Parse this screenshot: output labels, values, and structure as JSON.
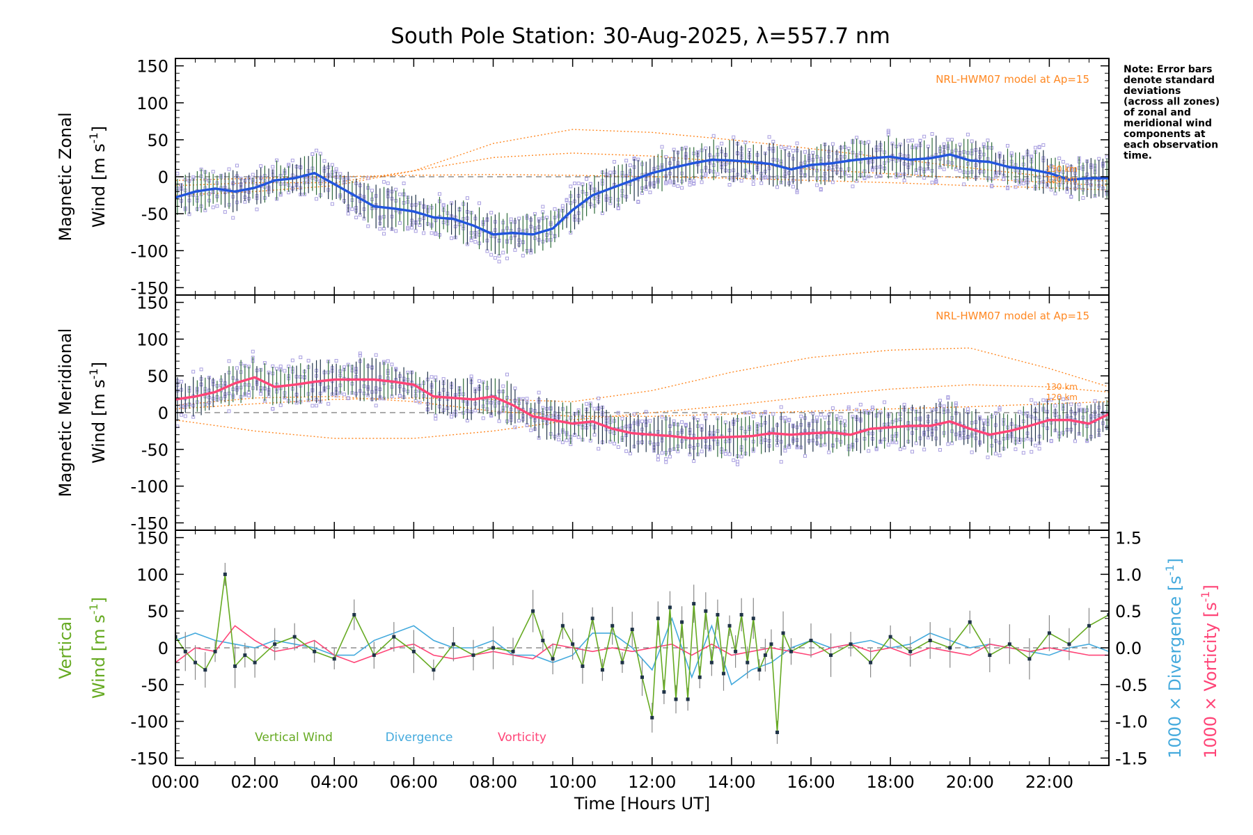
{
  "chart_data": {
    "type": "line",
    "title": "South Pole Station: 30-Aug-2025, λ=557.7 nm",
    "note": [
      "Note: Error bars",
      "denote standard",
      "deviations",
      "(across all zones)",
      "of zonal and",
      "meridional wind",
      "components at",
      "each observation",
      "time."
    ],
    "xlabel": "Time [Hours UT]",
    "xlim": [
      0,
      23.5
    ],
    "x_tick_labels": [
      "00:00",
      "02:00",
      "04:00",
      "06:00",
      "08:00",
      "10:00",
      "12:00",
      "14:00",
      "16:00",
      "18:00",
      "20:00",
      "22:00"
    ],
    "x_tick_values": [
      0,
      2,
      4,
      6,
      8,
      10,
      12,
      14,
      16,
      18,
      20,
      22
    ],
    "colors": {
      "zonal": "#2255dd",
      "meridional": "#ff4477",
      "vertical": "#66aa22",
      "divergence": "#44aadd",
      "vorticity": "#ff4477",
      "model": "#ff8822",
      "errbar_green": "#2e6b3a",
      "errbar_dark": "#1f3348",
      "scatter": "#a89ee0"
    },
    "panels": [
      {
        "id": "zonal",
        "ylabel_line1": "Magnetic Zonal",
        "ylabel_line2": "Wind [m s",
        "ylabel_sup": "-1",
        "ylabel_close": "]",
        "ylim": [
          -160,
          160
        ],
        "y_ticks": [
          150,
          100,
          50,
          0,
          -50,
          -100,
          -150
        ],
        "model_label": "NRL-HWM07 model at Ap=15",
        "model_alt_labels": [
          "130 km",
          "120 km"
        ],
        "series": {
          "name": "Magnetic Zonal Wind",
          "x": [
            0,
            0.5,
            1,
            1.5,
            2,
            2.5,
            3,
            3.5,
            4,
            4.5,
            5,
            5.5,
            6,
            6.5,
            7,
            7.5,
            8,
            8.5,
            9,
            9.5,
            10,
            10.5,
            11,
            11.5,
            12,
            12.5,
            13,
            13.5,
            14,
            14.5,
            15,
            15.5,
            16,
            16.5,
            17,
            17.5,
            18,
            18.5,
            19,
            19.5,
            20,
            20.5,
            21,
            21.5,
            22,
            22.5,
            23,
            23.5
          ],
          "values": [
            -28,
            -20,
            -16,
            -20,
            -15,
            -5,
            -2,
            5,
            -10,
            -25,
            -40,
            -43,
            -47,
            -55,
            -57,
            -66,
            -78,
            -76,
            -78,
            -70,
            -45,
            -25,
            -15,
            -5,
            5,
            12,
            18,
            23,
            22,
            20,
            17,
            10,
            16,
            18,
            22,
            25,
            27,
            23,
            25,
            30,
            22,
            20,
            13,
            10,
            5,
            -4,
            -2,
            -2
          ]
        },
        "model_curves": [
          {
            "x": [
              0,
              2,
              4,
              6,
              8,
              10,
              12,
              14,
              16,
              18,
              20,
              22,
              23.5
            ],
            "values": [
              -12,
              -8,
              -8,
              8,
              26,
              32,
              28,
              20,
              10,
              4,
              -2,
              -8,
              -12
            ]
          },
          {
            "x": [
              0,
              2,
              4,
              6,
              8,
              10,
              12,
              14,
              16,
              18,
              20,
              22,
              23.5
            ],
            "values": [
              -25,
              -20,
              -12,
              8,
              45,
              64,
              60,
              50,
              38,
              25,
              12,
              0,
              -6
            ]
          },
          {
            "x": [
              0,
              2,
              4,
              6,
              8,
              10,
              12,
              14,
              16,
              18,
              20,
              22,
              23.5
            ],
            "values": [
              -5,
              -2,
              0,
              2,
              3,
              2,
              0,
              -2,
              -5,
              -8,
              -12,
              -15,
              -18
            ]
          }
        ]
      },
      {
        "id": "meridional",
        "ylabel_line1": "Magnetic Meridional",
        "ylabel_line2": "Wind [m s",
        "ylabel_sup": "-1",
        "ylabel_close": "]",
        "ylim": [
          -160,
          160
        ],
        "y_ticks": [
          150,
          100,
          50,
          0,
          -50,
          -100,
          -150
        ],
        "model_label": "NRL-HWM07 model at Ap=15",
        "model_alt_labels": [
          "130 km",
          "120 km"
        ],
        "series": {
          "name": "Magnetic Meridional Wind",
          "x": [
            0,
            0.5,
            1,
            1.5,
            2,
            2.5,
            3,
            3.5,
            4,
            4.5,
            5,
            5.5,
            6,
            6.5,
            7,
            7.5,
            8,
            8.5,
            9,
            9.5,
            10,
            10.5,
            11,
            11.5,
            12,
            12.5,
            13,
            13.5,
            14,
            14.5,
            15,
            15.5,
            16,
            16.5,
            17,
            17.5,
            18,
            18.5,
            19,
            19.5,
            20,
            20.5,
            21,
            21.5,
            22,
            22.5,
            23,
            23.5
          ],
          "values": [
            18,
            22,
            28,
            40,
            48,
            35,
            38,
            42,
            45,
            45,
            45,
            42,
            38,
            22,
            20,
            18,
            22,
            10,
            -5,
            -10,
            -15,
            -12,
            -22,
            -28,
            -30,
            -32,
            -35,
            -34,
            -33,
            -32,
            -28,
            -30,
            -28,
            -27,
            -30,
            -22,
            -20,
            -18,
            -18,
            -12,
            -22,
            -30,
            -25,
            -18,
            -10,
            -10,
            -15,
            -2
          ]
        },
        "model_curves": [
          {
            "x": [
              0,
              2,
              4,
              6,
              8,
              10,
              12,
              14,
              16,
              18,
              20,
              22,
              23.5
            ],
            "values": [
              10,
              20,
              22,
              15,
              2,
              -5,
              -5,
              -2,
              2,
              5,
              8,
              12,
              15
            ]
          },
          {
            "x": [
              0,
              2,
              4,
              6,
              8,
              10,
              12,
              14,
              16,
              18,
              20,
              22,
              23.5
            ],
            "values": [
              -10,
              -25,
              -35,
              -35,
              -25,
              -10,
              0,
              10,
              22,
              32,
              38,
              35,
              28
            ]
          },
          {
            "x": [
              0,
              2,
              4,
              6,
              8,
              10,
              12,
              14,
              16,
              18,
              20,
              22,
              23.5
            ],
            "values": [
              5,
              12,
              18,
              20,
              18,
              15,
              30,
              55,
              75,
              85,
              88,
              60,
              35
            ]
          }
        ]
      },
      {
        "id": "vertical",
        "ylabel_line1": "Vertical",
        "ylabel_line2": "Wind [m s",
        "ylabel_sup": "-1",
        "ylabel_close": "]",
        "ylim": [
          -160,
          160
        ],
        "y_ticks": [
          150,
          100,
          50,
          0,
          -50,
          -100,
          -150
        ],
        "right_ylim": [
          -1.6,
          1.6
        ],
        "right_ticks": [
          "1.5",
          "1.0",
          "0.5",
          "0.0",
          "-0.5",
          "-1.0",
          "-1.5"
        ],
        "right_tick_values": [
          1.5,
          1.0,
          0.5,
          0.0,
          -0.5,
          -1.0,
          -1.5
        ],
        "right_label_div": "1000 × Divergence [s",
        "right_label_vor": "1000 × Vorticity [s",
        "right_label_sup": "-1",
        "right_label_close": "]",
        "legend": [
          "Vertical Wind",
          "Divergence",
          "Vorticity"
        ],
        "vertical_wind": {
          "x": [
            0,
            0.25,
            0.5,
            0.75,
            1,
            1.25,
            1.5,
            1.75,
            2,
            2.5,
            3,
            3.5,
            4,
            4.5,
            5,
            5.5,
            6,
            6.5,
            7,
            7.5,
            8,
            8.5,
            9,
            9.25,
            9.5,
            9.75,
            10,
            10.25,
            10.5,
            10.75,
            11,
            11.25,
            11.5,
            11.75,
            12,
            12.15,
            12.3,
            12.45,
            12.6,
            12.75,
            12.9,
            13.05,
            13.2,
            13.35,
            13.5,
            13.65,
            13.8,
            13.95,
            14.1,
            14.25,
            14.4,
            14.55,
            14.7,
            14.85,
            15,
            15.15,
            15.3,
            15.5,
            16,
            16.5,
            17,
            17.5,
            18,
            18.5,
            19,
            19.5,
            20,
            20.5,
            21,
            21.5,
            22,
            22.5,
            23,
            23.5
          ],
          "values": [
            15,
            -5,
            -20,
            -30,
            -5,
            100,
            -25,
            -10,
            -20,
            5,
            15,
            -5,
            -15,
            45,
            -10,
            15,
            -5,
            -30,
            5,
            -10,
            0,
            -5,
            50,
            10,
            -15,
            30,
            5,
            -25,
            40,
            -30,
            30,
            -20,
            25,
            -40,
            -95,
            40,
            -60,
            55,
            -70,
            35,
            -70,
            60,
            -40,
            50,
            -20,
            45,
            -35,
            30,
            -5,
            45,
            -20,
            40,
            -30,
            -10,
            5,
            -115,
            20,
            -5,
            10,
            -10,
            5,
            -20,
            15,
            -5,
            10,
            0,
            35,
            -10,
            5,
            -15,
            20,
            5,
            30,
            45
          ]
        },
        "divergence": {
          "x": [
            0,
            0.5,
            1,
            1.5,
            2,
            2.5,
            3,
            3.5,
            4,
            4.5,
            5,
            5.5,
            6,
            6.5,
            7,
            7.5,
            8,
            8.5,
            9,
            9.5,
            10,
            10.5,
            11,
            11.5,
            12,
            12.5,
            13,
            13.5,
            14,
            14.5,
            15,
            15.5,
            16,
            16.5,
            17,
            17.5,
            18,
            18.5,
            19,
            19.5,
            20,
            20.5,
            21,
            21.5,
            22,
            22.5,
            23,
            23.5
          ],
          "values": [
            0.1,
            0.2,
            0.1,
            0.05,
            0.0,
            0.1,
            0.05,
            0.0,
            -0.1,
            -0.1,
            0.1,
            0.2,
            0.3,
            0.1,
            0.0,
            0.0,
            0.1,
            -0.1,
            -0.1,
            -0.2,
            -0.1,
            0.2,
            0.2,
            0.0,
            -0.3,
            0.4,
            -0.4,
            0.3,
            -0.5,
            -0.3,
            -0.2,
            0.0,
            0.1,
            0.0,
            0.05,
            0.1,
            0.0,
            0.05,
            0.2,
            0.1,
            0.0,
            0.05,
            0.0,
            -0.05,
            -0.1,
            0.0,
            0.05,
            -0.05
          ]
        },
        "vorticity": {
          "x": [
            0,
            0.5,
            1,
            1.5,
            2,
            2.5,
            3,
            3.5,
            4,
            4.5,
            5,
            5.5,
            6,
            6.5,
            7,
            7.5,
            8,
            8.5,
            9,
            9.5,
            10,
            10.5,
            11,
            11.5,
            12,
            12.5,
            13,
            13.5,
            14,
            14.5,
            15,
            15.5,
            16,
            16.5,
            17,
            17.5,
            18,
            18.5,
            19,
            19.5,
            20,
            20.5,
            21,
            21.5,
            22,
            22.5,
            23,
            23.5
          ],
          "values": [
            -0.2,
            0.0,
            -0.05,
            0.3,
            0.1,
            -0.05,
            0.0,
            0.1,
            -0.1,
            -0.2,
            -0.1,
            0.0,
            0.05,
            -0.1,
            -0.15,
            -0.1,
            -0.05,
            -0.1,
            -0.15,
            0.05,
            0.0,
            -0.05,
            0.0,
            -0.05,
            0.0,
            0.05,
            -0.1,
            0.05,
            -0.1,
            -0.05,
            0.0,
            -0.05,
            -0.1,
            0.0,
            0.05,
            -0.05,
            0.0,
            -0.1,
            0.0,
            -0.05,
            -0.1,
            0.05,
            0.0,
            -0.05,
            0.0,
            -0.05,
            -0.1,
            -0.1
          ]
        }
      }
    ]
  }
}
